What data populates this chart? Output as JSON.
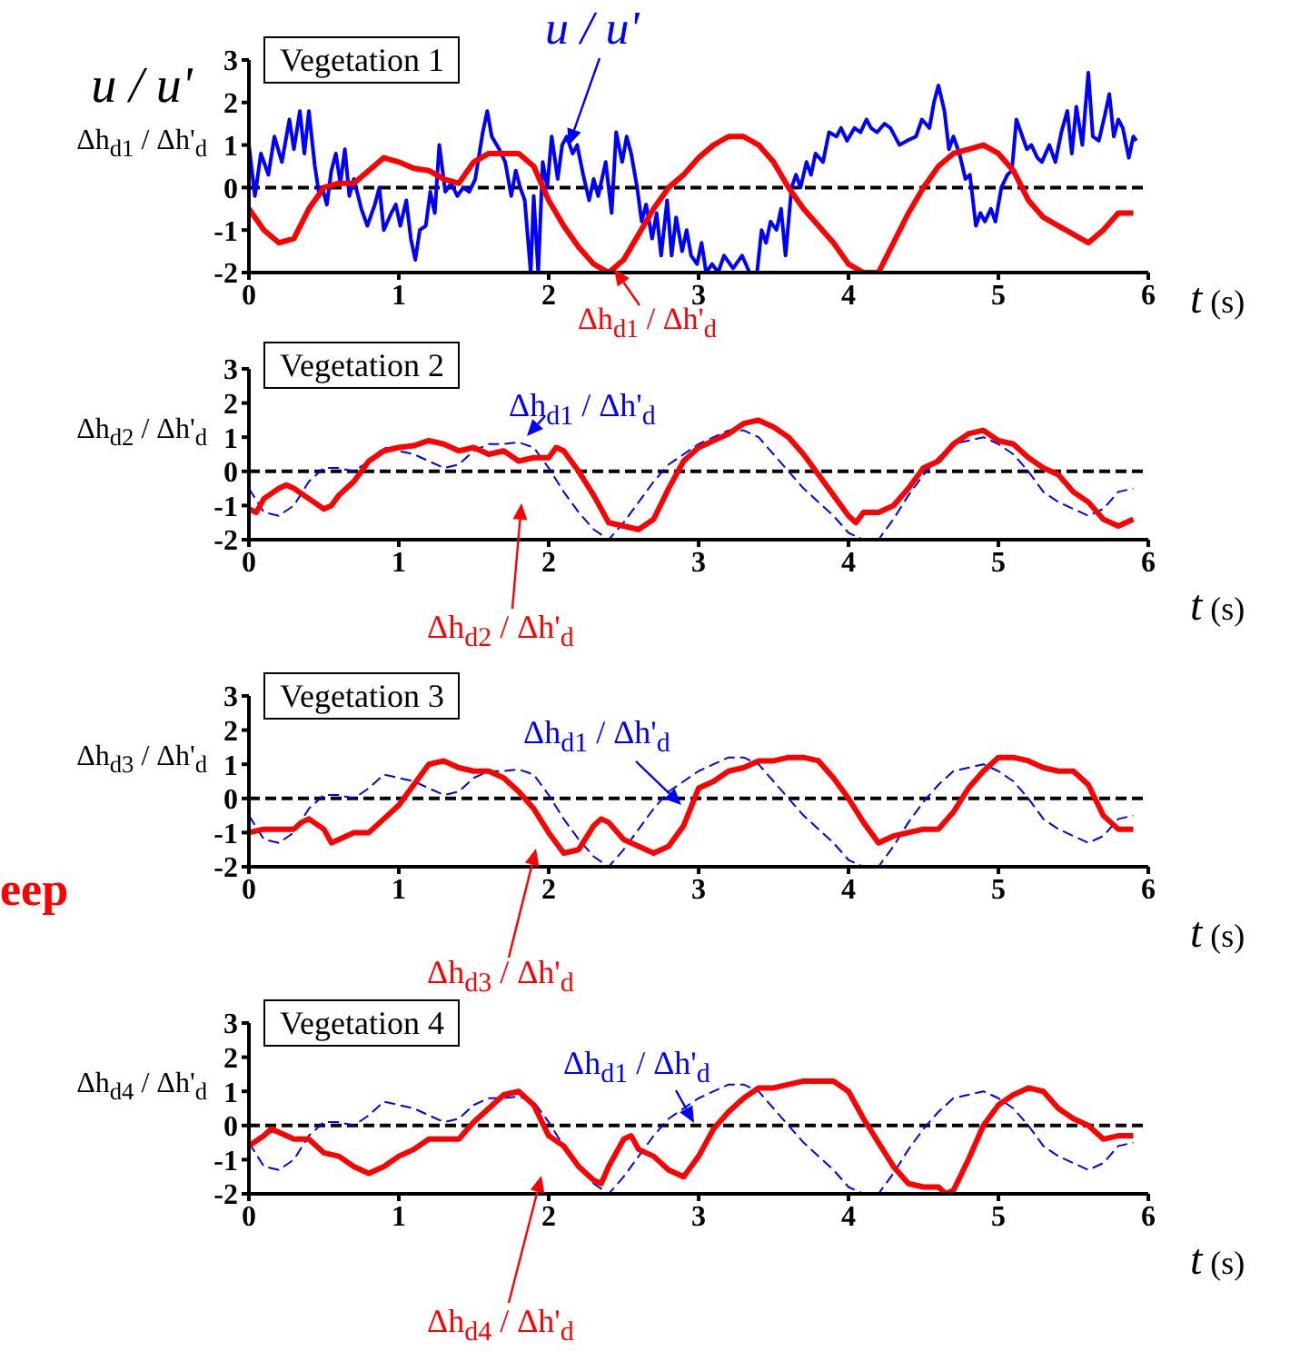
{
  "chart_data": [
    {
      "type": "line",
      "title": "Vegetation 1",
      "xlabel": "t (s)",
      "ylabel": "u / u'\nΔh$_{d1}$ / Δh'$_{d}$",
      "xlim": [
        0,
        6
      ],
      "xticks": [
        0,
        1,
        2,
        3,
        4,
        5,
        6
      ],
      "ylim": [
        -2,
        3
      ],
      "yticks": [
        -2,
        -1,
        0,
        1,
        2,
        3
      ],
      "ref_lines": [
        {
          "axis": "y",
          "value": 0,
          "color": "#000000",
          "line_style": "dashed"
        }
      ],
      "series": [
        {
          "name": "u / u'",
          "color": "#0000ff",
          "line_style": "solid",
          "x": [
            0.0,
            0.04,
            0.08,
            0.13,
            0.17,
            0.22,
            0.27,
            0.3,
            0.34,
            0.37,
            0.4,
            0.44,
            0.47,
            0.49,
            0.52,
            0.55,
            0.58,
            0.61,
            0.64,
            0.67,
            0.7,
            0.75,
            0.79,
            0.84,
            0.87,
            0.9,
            0.95,
            0.98,
            1.01,
            1.05,
            1.08,
            1.11,
            1.14,
            1.18,
            1.21,
            1.24,
            1.27,
            1.31,
            1.35,
            1.39,
            1.43,
            1.47,
            1.51,
            1.56,
            1.59,
            1.62,
            1.67,
            1.71,
            1.75,
            1.78,
            1.81,
            1.84,
            1.88,
            1.9,
            1.93,
            1.96,
            1.99,
            2.02,
            2.06,
            2.09,
            2.12,
            2.16,
            2.19,
            2.23,
            2.27,
            2.3,
            2.33,
            2.38,
            2.42,
            2.45,
            2.49,
            2.52,
            2.55,
            2.59,
            2.62,
            2.65,
            2.69,
            2.72,
            2.75,
            2.79,
            2.82,
            2.85,
            2.89,
            2.92,
            2.95,
            2.99,
            3.02,
            3.05,
            3.09,
            3.13,
            3.17,
            3.23,
            3.29,
            3.34,
            3.39,
            3.42,
            3.45,
            3.48,
            3.52,
            3.55,
            3.58,
            3.62,
            3.65,
            3.68,
            3.72,
            3.75,
            3.78,
            3.83,
            3.87,
            3.92,
            3.95,
            3.99,
            4.04,
            4.08,
            4.12,
            4.15,
            4.19,
            4.24,
            4.28,
            4.34,
            4.39,
            4.45,
            4.49,
            4.54,
            4.57,
            4.6,
            4.64,
            4.67,
            4.7,
            4.74,
            4.78,
            4.81,
            4.85,
            4.88,
            4.91,
            4.95,
            4.98,
            5.02,
            5.06,
            5.09,
            5.12,
            5.16,
            5.19,
            5.22,
            5.26,
            5.29,
            5.34,
            5.38,
            5.42,
            5.46,
            5.49,
            5.52,
            5.56,
            5.6,
            5.63,
            5.67,
            5.71,
            5.74,
            5.77,
            5.8,
            5.83,
            5.87,
            5.9,
            5.92
          ],
          "values": [
            1.0,
            -0.2,
            0.8,
            0.3,
            1.2,
            0.6,
            1.6,
            0.9,
            1.8,
            0.8,
            1.8,
            0.5,
            -0.2,
            0.0,
            -0.4,
            0.4,
            0.8,
            0.1,
            0.9,
            -0.2,
            0.2,
            -0.5,
            -0.9,
            -0.4,
            0.0,
            -1.0,
            -0.6,
            -0.4,
            -0.9,
            -0.3,
            -1.2,
            -1.7,
            -1.0,
            -0.9,
            -0.1,
            -0.6,
            1.0,
            -0.1,
            0.1,
            -0.2,
            0.0,
            -0.1,
            0.2,
            1.3,
            1.8,
            1.2,
            0.9,
            0.6,
            -0.2,
            0.4,
            0.0,
            -0.3,
            -2.0,
            -0.2,
            -2.0,
            0.6,
            0.0,
            1.2,
            0.2,
            1.0,
            1.2,
            0.8,
            1.0,
            0.3,
            -0.3,
            0.2,
            -0.2,
            0.6,
            -0.6,
            1.3,
            0.6,
            1.2,
            0.8,
            0.0,
            -0.8,
            -0.4,
            -1.2,
            -0.6,
            -1.6,
            -0.3,
            -1.6,
            -0.7,
            -1.5,
            -1.0,
            -1.6,
            -1.8,
            -1.3,
            -2.0,
            -1.8,
            -2.0,
            -1.6,
            -1.9,
            -1.6,
            -2.0,
            -2.0,
            -1.0,
            -1.3,
            -0.8,
            -1.0,
            -0.5,
            -1.6,
            0.0,
            0.3,
            0.0,
            0.6,
            0.3,
            0.8,
            0.6,
            1.3,
            1.2,
            1.4,
            1.1,
            1.4,
            1.3,
            1.6,
            1.4,
            1.3,
            1.5,
            1.4,
            1.0,
            1.1,
            1.2,
            1.6,
            1.4,
            2.0,
            2.4,
            1.8,
            0.9,
            1.2,
            0.8,
            0.2,
            0.3,
            -0.9,
            -0.6,
            -0.8,
            -0.5,
            -0.8,
            0.0,
            0.3,
            0.4,
            1.6,
            1.2,
            0.9,
            1.0,
            0.7,
            0.6,
            1.0,
            0.6,
            1.3,
            1.8,
            0.8,
            1.9,
            1.0,
            2.7,
            1.2,
            1.1,
            1.7,
            2.2,
            1.2,
            1.6,
            1.4,
            0.7,
            1.2,
            1.1
          ]
        },
        {
          "name": "Δh$_{d1}$ / Δh'$_{d}$",
          "color": "#ff0000",
          "line_style": "solid",
          "x": [
            0,
            0.1,
            0.2,
            0.3,
            0.4,
            0.5,
            0.6,
            0.7,
            0.8,
            0.9,
            1.0,
            1.1,
            1.2,
            1.3,
            1.4,
            1.5,
            1.6,
            1.7,
            1.8,
            1.9,
            2.0,
            2.1,
            2.2,
            2.3,
            2.4,
            2.5,
            2.6,
            2.7,
            2.8,
            2.9,
            3.0,
            3.1,
            3.2,
            3.3,
            3.4,
            3.5,
            3.6,
            3.7,
            3.8,
            3.9,
            4.0,
            4.1,
            4.2,
            4.3,
            4.4,
            4.5,
            4.6,
            4.7,
            4.8,
            4.9,
            5.0,
            5.1,
            5.2,
            5.3,
            5.4,
            5.5,
            5.6,
            5.7,
            5.8,
            5.9
          ],
          "values": [
            -0.5,
            -1.0,
            -1.3,
            -1.2,
            -0.5,
            0.0,
            0.1,
            0.1,
            0.4,
            0.7,
            0.6,
            0.45,
            0.4,
            0.2,
            0.1,
            0.6,
            0.8,
            0.8,
            0.8,
            0.5,
            -0.3,
            -0.9,
            -1.4,
            -1.8,
            -2.0,
            -1.7,
            -1.1,
            -0.5,
            0.0,
            0.3,
            0.7,
            1.0,
            1.2,
            1.2,
            1.0,
            0.6,
            0.0,
            -0.5,
            -0.9,
            -1.3,
            -1.8,
            -2.0,
            -2.0,
            -1.3,
            -0.6,
            0.0,
            0.5,
            0.8,
            0.9,
            1.0,
            0.8,
            0.4,
            -0.3,
            -0.7,
            -0.9,
            -1.1,
            -1.3,
            -1.0,
            -0.6,
            -0.6
          ]
        }
      ]
    },
    {
      "type": "line",
      "title": "Vegetation 2",
      "xlabel": "t (s)",
      "ylabel": "Δh$_{d2}$ / Δh'$_{d}$",
      "xlim": [
        0,
        6
      ],
      "xticks": [
        0,
        1,
        2,
        3,
        4,
        5,
        6
      ],
      "ylim": [
        -2,
        3
      ],
      "yticks": [
        -2,
        -1,
        0,
        1,
        2,
        3
      ],
      "ref_lines": [
        {
          "axis": "y",
          "value": 0,
          "color": "#000000",
          "line_style": "dashed"
        }
      ],
      "series": [
        {
          "name": "Δh$_{d1}$ / Δh'$_{d}$",
          "color": "#0000ff",
          "line_style": "dashed",
          "x": [
            0,
            0.1,
            0.2,
            0.3,
            0.4,
            0.5,
            0.6,
            0.7,
            0.8,
            0.9,
            1.0,
            1.1,
            1.2,
            1.3,
            1.4,
            1.5,
            1.6,
            1.7,
            1.8,
            1.9,
            2.0,
            2.1,
            2.2,
            2.3,
            2.4,
            2.5,
            2.6,
            2.7,
            2.8,
            2.9,
            3.0,
            3.1,
            3.2,
            3.3,
            3.4,
            3.5,
            3.6,
            3.7,
            3.8,
            3.9,
            4.0,
            4.1,
            4.2,
            4.3,
            4.4,
            4.5,
            4.6,
            4.7,
            4.8,
            4.9,
            5.0,
            5.1,
            5.2,
            5.3,
            5.4,
            5.5,
            5.6,
            5.7,
            5.8,
            5.9
          ],
          "values": [
            -0.5,
            -1.2,
            -1.3,
            -1.0,
            -0.3,
            0.1,
            0.1,
            0.0,
            0.3,
            0.7,
            0.6,
            0.5,
            0.3,
            0.1,
            0.2,
            0.6,
            0.8,
            0.8,
            0.85,
            0.7,
            0.1,
            -0.6,
            -1.2,
            -1.7,
            -2.0,
            -1.5,
            -0.9,
            -0.3,
            0.2,
            0.5,
            0.8,
            1.0,
            1.2,
            1.2,
            1.0,
            0.5,
            0.0,
            -0.5,
            -0.9,
            -1.3,
            -1.8,
            -2.0,
            -2.0,
            -1.4,
            -0.7,
            -0.1,
            0.4,
            0.8,
            0.9,
            1.0,
            0.8,
            0.5,
            0.0,
            -0.6,
            -0.9,
            -1.1,
            -1.3,
            -1.1,
            -0.6,
            -0.5
          ]
        },
        {
          "name": "Δh$_{d2}$ / Δh'$_{d}$",
          "color": "#ff0000",
          "line_style": "solid",
          "x": [
            0,
            0.05,
            0.1,
            0.2,
            0.25,
            0.3,
            0.4,
            0.5,
            0.55,
            0.6,
            0.7,
            0.8,
            0.9,
            1.0,
            1.1,
            1.2,
            1.3,
            1.4,
            1.5,
            1.6,
            1.7,
            1.8,
            1.9,
            2.0,
            2.05,
            2.1,
            2.2,
            2.3,
            2.4,
            2.5,
            2.6,
            2.7,
            2.8,
            2.9,
            3.0,
            3.1,
            3.2,
            3.3,
            3.4,
            3.5,
            3.6,
            3.7,
            3.8,
            3.9,
            4.0,
            4.05,
            4.1,
            4.2,
            4.3,
            4.4,
            4.5,
            4.6,
            4.7,
            4.8,
            4.9,
            5.0,
            5.1,
            5.2,
            5.3,
            5.4,
            5.5,
            5.6,
            5.7,
            5.8,
            5.9
          ],
          "values": [
            -1.1,
            -1.2,
            -0.8,
            -0.5,
            -0.4,
            -0.5,
            -0.8,
            -1.1,
            -1.0,
            -0.7,
            -0.3,
            0.3,
            0.6,
            0.7,
            0.75,
            0.9,
            0.8,
            0.6,
            0.7,
            0.5,
            0.6,
            0.3,
            0.4,
            0.4,
            0.7,
            0.6,
            0.0,
            -0.7,
            -1.5,
            -1.6,
            -1.7,
            -1.4,
            -0.5,
            0.3,
            0.7,
            0.9,
            1.1,
            1.4,
            1.5,
            1.3,
            1.0,
            0.5,
            -0.1,
            -0.7,
            -1.3,
            -1.5,
            -1.2,
            -1.2,
            -1.0,
            -0.5,
            0.1,
            0.3,
            0.8,
            1.1,
            1.2,
            0.9,
            0.8,
            0.4,
            0.1,
            -0.1,
            -0.6,
            -0.9,
            -1.4,
            -1.6,
            -1.4
          ]
        }
      ]
    },
    {
      "type": "line",
      "title": "Vegetation 3",
      "xlabel": "t (s)",
      "ylabel": "Δh$_{d3}$ / Δh'$_{d}$",
      "xlim": [
        0,
        6
      ],
      "xticks": [
        0,
        1,
        2,
        3,
        4,
        5,
        6
      ],
      "ylim": [
        -2,
        3
      ],
      "yticks": [
        -2,
        -1,
        0,
        1,
        2,
        3
      ],
      "annotations": [
        "eep"
      ],
      "ref_lines": [
        {
          "axis": "y",
          "value": 0,
          "color": "#000000",
          "line_style": "dashed"
        }
      ],
      "series": [
        {
          "name": "Δh$_{d1}$ / Δh'$_{d}$",
          "color": "#0000ff",
          "line_style": "dashed",
          "x": [
            0,
            0.1,
            0.2,
            0.3,
            0.4,
            0.5,
            0.6,
            0.7,
            0.8,
            0.9,
            1.0,
            1.1,
            1.2,
            1.3,
            1.4,
            1.5,
            1.6,
            1.7,
            1.8,
            1.9,
            2.0,
            2.1,
            2.2,
            2.3,
            2.4,
            2.5,
            2.6,
            2.7,
            2.8,
            2.9,
            3.0,
            3.1,
            3.2,
            3.3,
            3.4,
            3.5,
            3.6,
            3.7,
            3.8,
            3.9,
            4.0,
            4.1,
            4.2,
            4.3,
            4.4,
            4.5,
            4.6,
            4.7,
            4.8,
            4.9,
            5.0,
            5.1,
            5.2,
            5.3,
            5.4,
            5.5,
            5.6,
            5.7,
            5.8,
            5.9
          ],
          "values": [
            -0.5,
            -1.2,
            -1.3,
            -1.0,
            -0.3,
            0.1,
            0.1,
            0.0,
            0.3,
            0.7,
            0.6,
            0.5,
            0.3,
            0.1,
            0.2,
            0.6,
            0.8,
            0.8,
            0.85,
            0.7,
            0.1,
            -0.6,
            -1.2,
            -1.7,
            -2.0,
            -1.5,
            -0.9,
            -0.3,
            0.2,
            0.5,
            0.8,
            1.0,
            1.2,
            1.2,
            1.0,
            0.5,
            0.0,
            -0.5,
            -0.9,
            -1.3,
            -1.8,
            -2.0,
            -2.0,
            -1.4,
            -0.7,
            -0.1,
            0.4,
            0.8,
            0.9,
            1.0,
            0.8,
            0.5,
            0.0,
            -0.6,
            -0.9,
            -1.1,
            -1.3,
            -1.1,
            -0.6,
            -0.5
          ]
        },
        {
          "name": "Δh$_{d3}$ / Δh'$_{d}$",
          "color": "#ff0000",
          "line_style": "solid",
          "x": [
            0,
            0.1,
            0.2,
            0.3,
            0.35,
            0.4,
            0.5,
            0.55,
            0.6,
            0.7,
            0.8,
            0.9,
            1.0,
            1.1,
            1.2,
            1.3,
            1.4,
            1.5,
            1.6,
            1.7,
            1.8,
            1.9,
            2.0,
            2.1,
            2.2,
            2.3,
            2.35,
            2.4,
            2.5,
            2.6,
            2.7,
            2.8,
            2.9,
            3.0,
            3.1,
            3.2,
            3.3,
            3.4,
            3.5,
            3.6,
            3.7,
            3.8,
            3.9,
            4.0,
            4.1,
            4.2,
            4.3,
            4.4,
            4.5,
            4.6,
            4.7,
            4.8,
            4.9,
            5.0,
            5.1,
            5.2,
            5.3,
            5.4,
            5.5,
            5.6,
            5.7,
            5.8,
            5.9
          ],
          "values": [
            -1.0,
            -0.9,
            -0.9,
            -0.9,
            -0.7,
            -0.6,
            -0.9,
            -1.3,
            -1.2,
            -1.0,
            -1.0,
            -0.6,
            -0.2,
            0.4,
            1.0,
            1.1,
            0.9,
            0.8,
            0.8,
            0.6,
            0.2,
            -0.3,
            -1.0,
            -1.6,
            -1.5,
            -0.8,
            -0.6,
            -0.7,
            -1.2,
            -1.4,
            -1.6,
            -1.4,
            -0.8,
            0.3,
            0.5,
            0.8,
            0.9,
            1.1,
            1.1,
            1.2,
            1.2,
            1.1,
            0.6,
            0.0,
            -0.7,
            -1.3,
            -1.1,
            -1.0,
            -0.9,
            -0.9,
            -0.4,
            0.3,
            0.8,
            1.2,
            1.2,
            1.1,
            0.9,
            0.8,
            0.8,
            0.4,
            -0.5,
            -0.9,
            -0.9
          ]
        }
      ]
    },
    {
      "type": "line",
      "title": "Vegetation 4",
      "xlabel": "t (s)",
      "ylabel": "Δh$_{d4}$ / Δh'$_{d}$",
      "xlim": [
        0,
        6
      ],
      "xticks": [
        0,
        1,
        2,
        3,
        4,
        5,
        6
      ],
      "ylim": [
        -2,
        3
      ],
      "yticks": [
        -2,
        -1,
        0,
        1,
        2,
        3
      ],
      "ref_lines": [
        {
          "axis": "y",
          "value": 0,
          "color": "#000000",
          "line_style": "dashed"
        }
      ],
      "series": [
        {
          "name": "Δh$_{d1}$ / Δh'$_{d}$",
          "color": "#0000ff",
          "line_style": "dashed",
          "x": [
            0,
            0.1,
            0.2,
            0.3,
            0.4,
            0.5,
            0.6,
            0.7,
            0.8,
            0.9,
            1.0,
            1.1,
            1.2,
            1.3,
            1.4,
            1.5,
            1.6,
            1.7,
            1.8,
            1.9,
            2.0,
            2.1,
            2.2,
            2.3,
            2.4,
            2.5,
            2.6,
            2.7,
            2.8,
            2.9,
            3.0,
            3.1,
            3.2,
            3.3,
            3.4,
            3.5,
            3.6,
            3.7,
            3.8,
            3.9,
            4.0,
            4.1,
            4.2,
            4.3,
            4.4,
            4.5,
            4.6,
            4.7,
            4.8,
            4.9,
            5.0,
            5.1,
            5.2,
            5.3,
            5.4,
            5.5,
            5.6,
            5.7,
            5.8,
            5.9
          ],
          "values": [
            -0.5,
            -1.2,
            -1.3,
            -1.0,
            -0.3,
            0.1,
            0.1,
            0.0,
            0.3,
            0.7,
            0.6,
            0.5,
            0.3,
            0.1,
            0.2,
            0.6,
            0.8,
            0.8,
            0.85,
            0.7,
            0.1,
            -0.6,
            -1.2,
            -1.7,
            -2.0,
            -1.5,
            -0.9,
            -0.3,
            0.2,
            0.5,
            0.8,
            1.0,
            1.2,
            1.2,
            1.0,
            0.5,
            0.0,
            -0.5,
            -0.9,
            -1.3,
            -1.8,
            -2.0,
            -2.0,
            -1.4,
            -0.7,
            -0.1,
            0.4,
            0.8,
            0.9,
            1.0,
            0.8,
            0.5,
            0.0,
            -0.6,
            -0.9,
            -1.1,
            -1.3,
            -1.1,
            -0.6,
            -0.5
          ]
        },
        {
          "name": "Δh$_{d4}$ / Δh'$_{d}$",
          "color": "#ff0000",
          "line_style": "solid",
          "x": [
            0,
            0.1,
            0.15,
            0.2,
            0.3,
            0.4,
            0.5,
            0.6,
            0.7,
            0.8,
            0.9,
            1.0,
            1.1,
            1.2,
            1.3,
            1.4,
            1.5,
            1.6,
            1.7,
            1.8,
            1.9,
            2.0,
            2.1,
            2.2,
            2.3,
            2.35,
            2.4,
            2.5,
            2.55,
            2.6,
            2.7,
            2.8,
            2.9,
            3.0,
            3.1,
            3.2,
            3.3,
            3.4,
            3.5,
            3.6,
            3.7,
            3.8,
            3.9,
            4.0,
            4.1,
            4.2,
            4.3,
            4.4,
            4.5,
            4.6,
            4.65,
            4.7,
            4.8,
            4.9,
            5.0,
            5.1,
            5.2,
            5.3,
            5.4,
            5.5,
            5.6,
            5.7,
            5.8,
            5.9
          ],
          "values": [
            -0.6,
            -0.3,
            -0.1,
            -0.2,
            -0.4,
            -0.4,
            -0.8,
            -0.9,
            -1.2,
            -1.4,
            -1.2,
            -0.9,
            -0.7,
            -0.4,
            -0.4,
            -0.4,
            0.1,
            0.5,
            0.9,
            1.0,
            0.6,
            -0.3,
            -0.6,
            -1.2,
            -1.6,
            -1.7,
            -1.2,
            -0.4,
            -0.3,
            -0.7,
            -0.9,
            -1.3,
            -1.5,
            -0.9,
            -0.1,
            0.4,
            0.8,
            1.1,
            1.1,
            1.2,
            1.3,
            1.3,
            1.3,
            1.0,
            0.2,
            -0.5,
            -1.2,
            -1.7,
            -1.8,
            -1.8,
            -2.0,
            -1.9,
            -1.0,
            0.0,
            0.6,
            0.9,
            1.1,
            1.0,
            0.5,
            0.2,
            0.0,
            -0.4,
            -0.3,
            -0.3
          ]
        }
      ]
    }
  ]
}
